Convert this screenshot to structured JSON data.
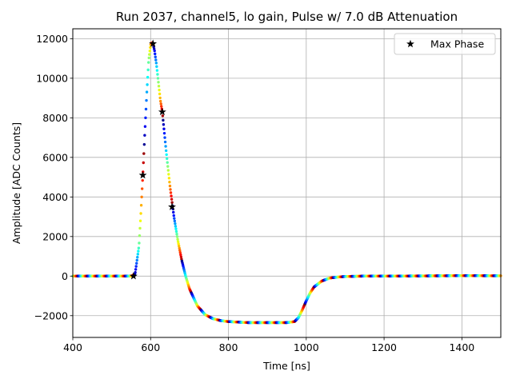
{
  "chart_data": {
    "type": "scatter",
    "title": "Run 2037, channel5, lo gain, Pulse w/ 7.0 dB Attenuation",
    "xlabel": "Time [ns]",
    "ylabel": "Amplitude [ADC Counts]",
    "xlim": [
      400,
      1500
    ],
    "ylim": [
      -3100,
      12500
    ],
    "xticks": [
      400,
      600,
      800,
      1000,
      1200,
      1400
    ],
    "xtick_labels": [
      "400",
      "600",
      "800",
      "1000",
      "1200",
      "1400"
    ],
    "yticks": [
      -2000,
      0,
      2000,
      4000,
      6000,
      8000,
      10000,
      12000
    ],
    "ytick_labels": [
      "−2000",
      "0",
      "2000",
      "4000",
      "6000",
      "8000",
      "10000",
      "12000"
    ],
    "grid": true,
    "legend": {
      "placement": "top-right",
      "entries": [
        "Max Phase"
      ]
    },
    "colormap": "jet",
    "pulse_curve": {
      "x": [
        400,
        540,
        550,
        560,
        570,
        575,
        580,
        585,
        590,
        595,
        600,
        603,
        606,
        610,
        615,
        620,
        625,
        630,
        640,
        650,
        660,
        670,
        680,
        690,
        700,
        720,
        740,
        760,
        780,
        800,
        850,
        900,
        950,
        970,
        980,
        990,
        1000,
        1010,
        1020,
        1040,
        1060,
        1080,
        1100,
        1150,
        1200,
        1300,
        1400,
        1500
      ],
      "y": [
        0,
        0,
        0,
        100,
        1500,
        3200,
        5100,
        7200,
        9200,
        10900,
        11700,
        11800,
        11750,
        11400,
        10700,
        9800,
        8900,
        8300,
        6300,
        4500,
        3000,
        1800,
        800,
        0,
        -650,
        -1500,
        -1950,
        -2150,
        -2250,
        -2300,
        -2350,
        -2350,
        -2350,
        -2300,
        -2100,
        -1700,
        -1250,
        -850,
        -550,
        -250,
        -100,
        -50,
        -20,
        0,
        0,
        10,
        20,
        15
      ]
    },
    "series": [
      {
        "name": "Max Phase",
        "marker": "star",
        "x": [
          556,
          580,
          606,
          630,
          655
        ],
        "y": [
          0,
          5100,
          11750,
          8300,
          3500
        ]
      }
    ]
  }
}
